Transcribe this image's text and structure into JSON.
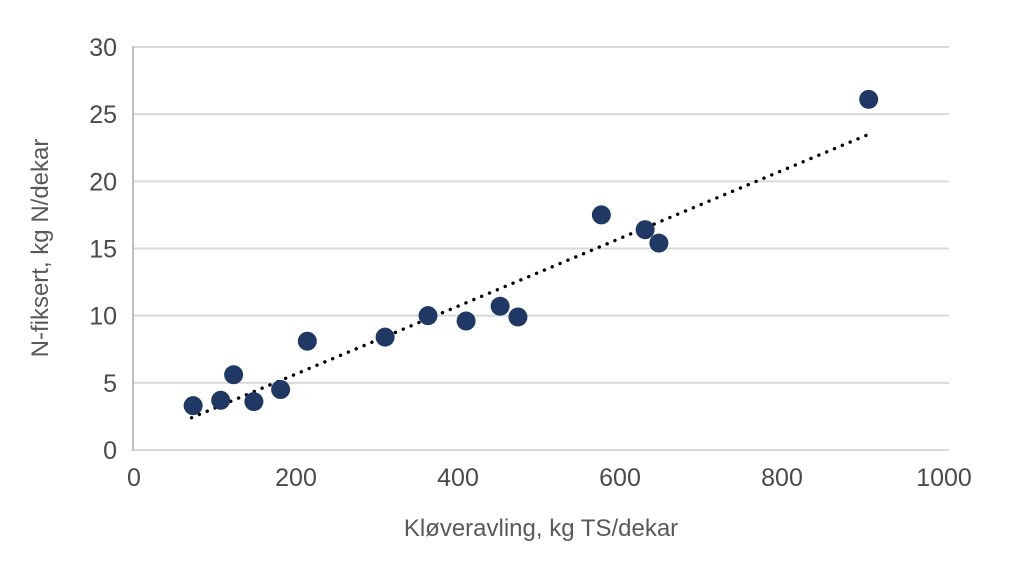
{
  "chart_data": {
    "type": "scatter",
    "title": "",
    "xlabel": "Kløveravling, kg TS/dekar",
    "ylabel": "N-fiksert, kg N/dekar",
    "xlim": [
      0,
      1000
    ],
    "ylim": [
      0,
      30
    ],
    "xticks": [
      0,
      200,
      400,
      600,
      800,
      1000
    ],
    "yticks": [
      0,
      5,
      10,
      15,
      20,
      25,
      30
    ],
    "grid": true,
    "legend": false,
    "series": [
      {
        "name": "N-fiksert",
        "points": [
          [
            73,
            3.3
          ],
          [
            107,
            3.7
          ],
          [
            123,
            5.6
          ],
          [
            148,
            3.6
          ],
          [
            181,
            4.5
          ],
          [
            214,
            8.1
          ],
          [
            310,
            8.4
          ],
          [
            363,
            10.0
          ],
          [
            410,
            9.6
          ],
          [
            452,
            10.7
          ],
          [
            474,
            9.9
          ],
          [
            577,
            17.5
          ],
          [
            631,
            16.4
          ],
          [
            648,
            15.4
          ],
          [
            907,
            26.1
          ]
        ]
      }
    ],
    "trendline": {
      "style": "dotted",
      "x1": 71,
      "y1": 2.4,
      "x2": 907,
      "y2": 23.5
    },
    "colors": {
      "marker": "#1F3864",
      "gridline": "#D9D9D9",
      "axis_line": "#BFBFBF",
      "tick_label": "#4a4a4a",
      "axis_title": "#595959",
      "trendline": "#000000",
      "background": "#ffffff"
    }
  }
}
